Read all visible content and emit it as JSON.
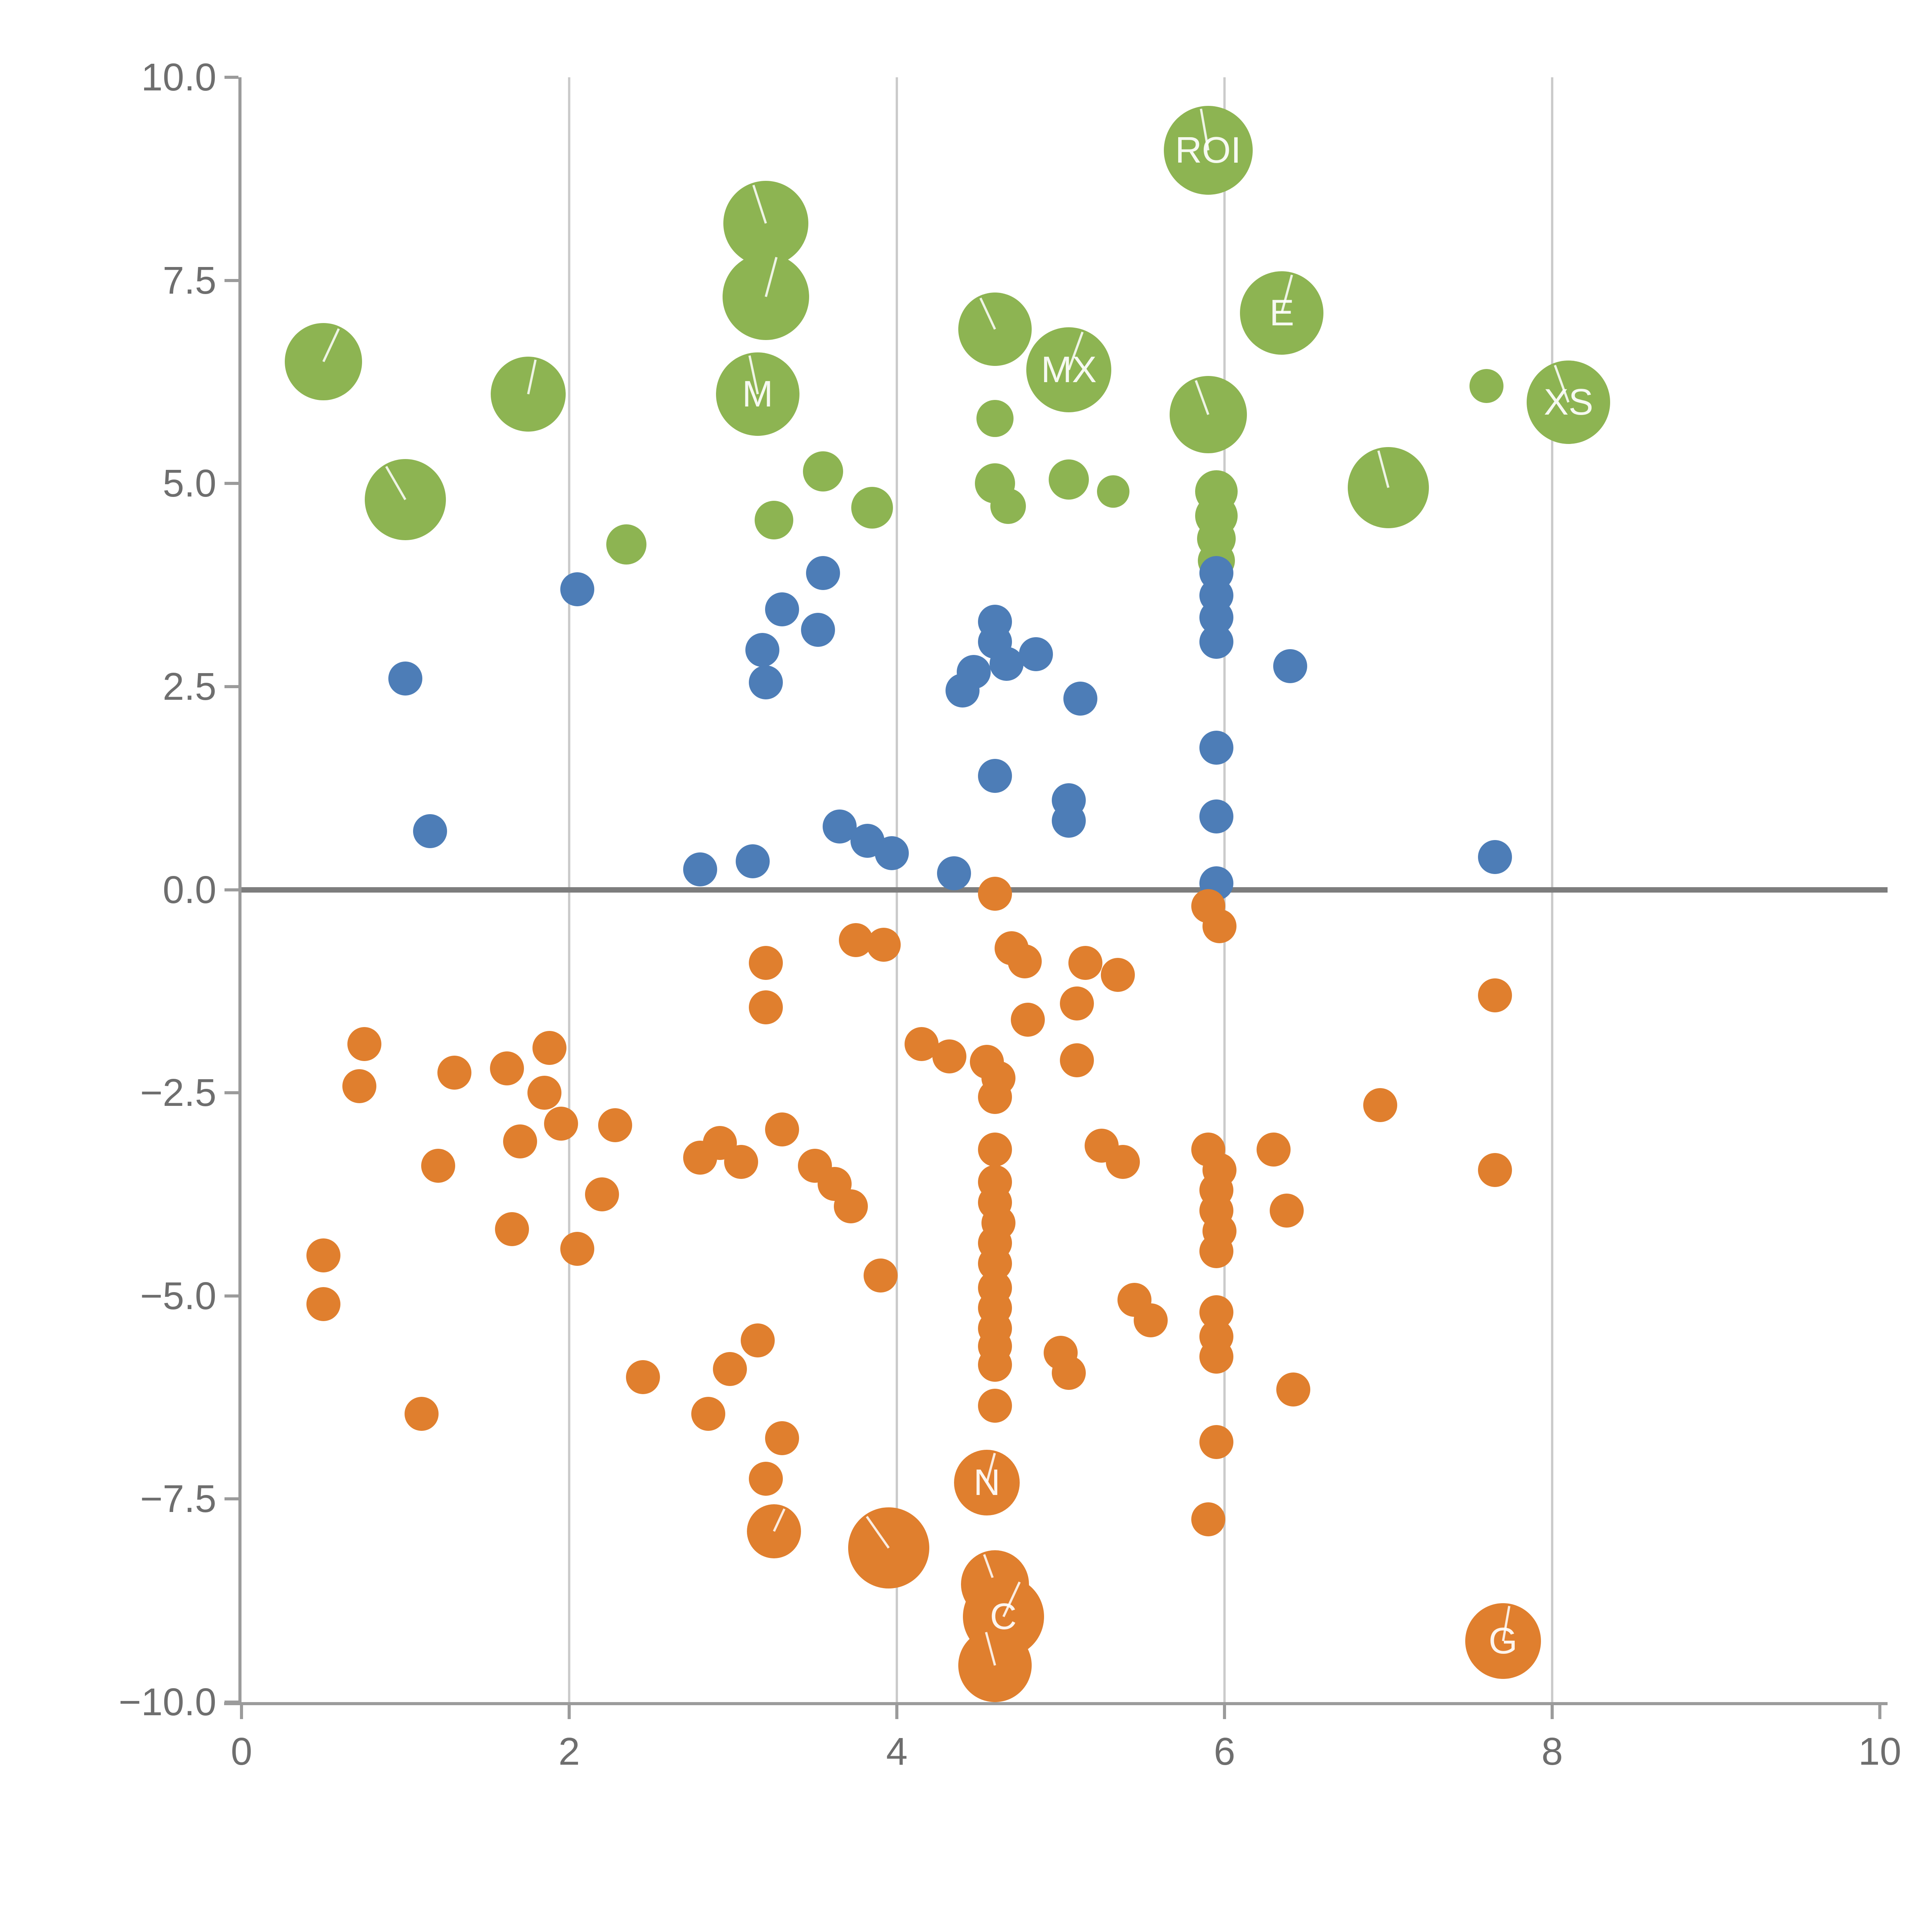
{
  "chart_data": {
    "type": "scatter",
    "title": "",
    "xlabel": "",
    "ylabel": "",
    "xlim": [
      0,
      10
    ],
    "ylim": [
      -10,
      10
    ],
    "legend": "none",
    "grid": "vertical-gridlines-only",
    "grid_x_values": [
      2,
      4,
      6,
      8
    ],
    "zero_line_y": 0,
    "x_ticks": [
      {
        "v": 0,
        "label": "0"
      },
      {
        "v": 2,
        "label": "2"
      },
      {
        "v": 4,
        "label": "4"
      },
      {
        "v": 6,
        "label": "6"
      },
      {
        "v": 8,
        "label": "8"
      },
      {
        "v": 10,
        "label": "10"
      }
    ],
    "y_ticks": [
      {
        "v": 10,
        "label": "10.0"
      },
      {
        "v": 7.5,
        "label": "7.5"
      },
      {
        "v": 5,
        "label": "5.0"
      },
      {
        "v": 2.5,
        "label": "2.5"
      },
      {
        "v": 0,
        "label": "0.0"
      },
      {
        "v": -2.5,
        "label": "−2.5"
      },
      {
        "v": -5,
        "label": "−5.0"
      },
      {
        "v": -7.5,
        "label": "−7.5"
      },
      {
        "v": -10,
        "label": "−10.0"
      }
    ],
    "colors": {
      "green": "#8db452",
      "blue": "#4d7db7",
      "orange": "#e07f2e",
      "grid": "#cbcbcb",
      "zero_line": "#7d7d7d",
      "axis": "#9b9b9b",
      "tick_label": "#6e6e6e",
      "bubble_label": "#ffffff"
    },
    "series": [
      {
        "name": "green",
        "color": "#8db452",
        "default_radius": 48,
        "points": [
          {
            "x": 0.5,
            "y": 6.5,
            "r": 100,
            "a": 25
          },
          {
            "x": 1.0,
            "y": 4.8,
            "r": 105,
            "a": -30
          },
          {
            "x": 1.75,
            "y": 6.1,
            "r": 97,
            "a": 12
          },
          {
            "x": 2.35,
            "y": 4.25,
            "r": 52
          },
          {
            "x": 3.2,
            "y": 8.2,
            "r": 110,
            "a": -18
          },
          {
            "x": 3.2,
            "y": 7.3,
            "r": 112,
            "a": 15
          },
          {
            "x": 3.15,
            "y": 6.1,
            "r": 108,
            "a": -12,
            "label": "M"
          },
          {
            "x": 3.25,
            "y": 4.55,
            "r": 50
          },
          {
            "x": 3.55,
            "y": 5.15,
            "r": 52
          },
          {
            "x": 3.85,
            "y": 4.7,
            "r": 54
          },
          {
            "x": 4.6,
            "y": 6.9,
            "r": 95,
            "a": -25
          },
          {
            "x": 4.6,
            "y": 5.8,
            "r": 48
          },
          {
            "x": 4.6,
            "y": 5.0,
            "r": 52
          },
          {
            "x": 4.68,
            "y": 4.72,
            "r": 46
          },
          {
            "x": 5.05,
            "y": 6.4,
            "r": 110,
            "a": 20,
            "label": "MX"
          },
          {
            "x": 5.05,
            "y": 5.05,
            "r": 52
          },
          {
            "x": 5.32,
            "y": 4.9,
            "r": 42
          },
          {
            "x": 5.9,
            "y": 9.1,
            "r": 115,
            "a": -10,
            "label": "ROI"
          },
          {
            "x": 5.9,
            "y": 5.85,
            "r": 100,
            "a": -20
          },
          {
            "x": 5.95,
            "y": 4.9,
            "r": 55
          },
          {
            "x": 5.95,
            "y": 4.6,
            "r": 55
          },
          {
            "x": 5.95,
            "y": 4.32,
            "r": 50
          },
          {
            "x": 5.95,
            "y": 4.05,
            "r": 48
          },
          {
            "x": 6.35,
            "y": 7.1,
            "r": 108,
            "a": 15,
            "label": "E"
          },
          {
            "x": 7.0,
            "y": 4.95,
            "r": 105,
            "a": -15
          },
          {
            "x": 7.6,
            "y": 6.2,
            "r": 44
          },
          {
            "x": 8.1,
            "y": 6.0,
            "r": 108,
            "a": -20,
            "label": "XS"
          }
        ]
      },
      {
        "name": "blue",
        "color": "#4d7db7",
        "default_radius": 44,
        "points": [
          {
            "x": 1.0,
            "y": 2.6
          },
          {
            "x": 1.15,
            "y": 0.72
          },
          {
            "x": 2.05,
            "y": 3.7
          },
          {
            "x": 2.8,
            "y": 0.25
          },
          {
            "x": 3.12,
            "y": 0.35
          },
          {
            "x": 3.2,
            "y": 2.55
          },
          {
            "x": 3.18,
            "y": 2.95
          },
          {
            "x": 3.3,
            "y": 3.45
          },
          {
            "x": 3.55,
            "y": 3.9
          },
          {
            "x": 3.52,
            "y": 3.2
          },
          {
            "x": 3.65,
            "y": 0.78
          },
          {
            "x": 3.82,
            "y": 0.6
          },
          {
            "x": 3.97,
            "y": 0.45
          },
          {
            "x": 4.35,
            "y": 0.2
          },
          {
            "x": 4.4,
            "y": 2.45
          },
          {
            "x": 4.47,
            "y": 2.68
          },
          {
            "x": 4.6,
            "y": 3.3
          },
          {
            "x": 4.6,
            "y": 3.05
          },
          {
            "x": 4.67,
            "y": 2.78
          },
          {
            "x": 4.6,
            "y": 1.4
          },
          {
            "x": 4.85,
            "y": 2.9
          },
          {
            "x": 5.05,
            "y": 1.1
          },
          {
            "x": 5.05,
            "y": 0.85
          },
          {
            "x": 5.12,
            "y": 2.35
          },
          {
            "x": 5.95,
            "y": 3.9
          },
          {
            "x": 5.95,
            "y": 3.62
          },
          {
            "x": 5.95,
            "y": 3.35
          },
          {
            "x": 5.95,
            "y": 3.05
          },
          {
            "x": 5.95,
            "y": 1.75
          },
          {
            "x": 5.95,
            "y": 0.9
          },
          {
            "x": 5.95,
            "y": 0.08
          },
          {
            "x": 6.4,
            "y": 2.75
          },
          {
            "x": 7.65,
            "y": 0.4
          }
        ]
      },
      {
        "name": "orange",
        "color": "#e07f2e",
        "default_radius": 44,
        "points": [
          {
            "x": 0.5,
            "y": -4.5
          },
          {
            "x": 0.5,
            "y": -5.1
          },
          {
            "x": 0.75,
            "y": -1.9
          },
          {
            "x": 0.72,
            "y": -2.42
          },
          {
            "x": 1.1,
            "y": -6.45
          },
          {
            "x": 1.2,
            "y": -3.4
          },
          {
            "x": 1.3,
            "y": -2.25
          },
          {
            "x": 1.62,
            "y": -2.2
          },
          {
            "x": 1.88,
            "y": -1.95
          },
          {
            "x": 1.85,
            "y": -2.5
          },
          {
            "x": 1.7,
            "y": -3.1
          },
          {
            "x": 1.95,
            "y": -2.88
          },
          {
            "x": 1.65,
            "y": -4.18
          },
          {
            "x": 2.05,
            "y": -4.42
          },
          {
            "x": 2.2,
            "y": -3.75
          },
          {
            "x": 2.28,
            "y": -2.9
          },
          {
            "x": 2.45,
            "y": -6.0
          },
          {
            "x": 2.8,
            "y": -3.3
          },
          {
            "x": 2.92,
            "y": -3.12
          },
          {
            "x": 2.85,
            "y": -6.45
          },
          {
            "x": 2.98,
            "y": -5.9
          },
          {
            "x": 3.15,
            "y": -5.55
          },
          {
            "x": 3.2,
            "y": -0.9
          },
          {
            "x": 3.2,
            "y": -1.45
          },
          {
            "x": 3.05,
            "y": -3.35
          },
          {
            "x": 3.3,
            "y": -2.95
          },
          {
            "x": 3.5,
            "y": -3.4
          },
          {
            "x": 3.62,
            "y": -3.62
          },
          {
            "x": 3.72,
            "y": -3.9
          },
          {
            "x": 3.3,
            "y": -6.75
          },
          {
            "x": 3.2,
            "y": -7.25
          },
          {
            "x": 3.25,
            "y": -7.9,
            "r": 70,
            "a": 25
          },
          {
            "x": 3.75,
            "y": -0.62
          },
          {
            "x": 3.92,
            "y": -0.68
          },
          {
            "x": 3.9,
            "y": -4.75
          },
          {
            "x": 3.95,
            "y": -8.1,
            "r": 105,
            "a": -35
          },
          {
            "x": 4.15,
            "y": -1.9
          },
          {
            "x": 4.32,
            "y": -2.05
          },
          {
            "x": 4.55,
            "y": -2.12
          },
          {
            "x": 4.62,
            "y": -2.32
          },
          {
            "x": 4.6,
            "y": -2.55
          },
          {
            "x": 4.6,
            "y": -0.05
          },
          {
            "x": 4.7,
            "y": -0.72
          },
          {
            "x": 4.78,
            "y": -0.88
          },
          {
            "x": 4.8,
            "y": -1.6
          },
          {
            "x": 4.6,
            "y": -3.2
          },
          {
            "x": 4.6,
            "y": -3.6
          },
          {
            "x": 4.6,
            "y": -3.85
          },
          {
            "x": 4.62,
            "y": -4.1
          },
          {
            "x": 4.6,
            "y": -4.35
          },
          {
            "x": 4.6,
            "y": -4.6
          },
          {
            "x": 4.6,
            "y": -4.9
          },
          {
            "x": 4.6,
            "y": -5.15
          },
          {
            "x": 4.6,
            "y": -5.4
          },
          {
            "x": 4.6,
            "y": -5.62
          },
          {
            "x": 4.6,
            "y": -5.85
          },
          {
            "x": 4.6,
            "y": -6.35
          },
          {
            "x": 4.55,
            "y": -7.3,
            "r": 85,
            "a": 15,
            "label": "N"
          },
          {
            "x": 4.6,
            "y": -8.55,
            "r": 88,
            "a": -20
          },
          {
            "x": 4.65,
            "y": -8.95,
            "r": 105,
            "a": 25,
            "label": "C"
          },
          {
            "x": 4.6,
            "y": -9.55,
            "r": 95,
            "a": -15
          },
          {
            "x": 5.1,
            "y": -1.4
          },
          {
            "x": 5.15,
            "y": -0.9
          },
          {
            "x": 5.35,
            "y": -1.05
          },
          {
            "x": 5.1,
            "y": -2.1
          },
          {
            "x": 5.25,
            "y": -3.15
          },
          {
            "x": 5.38,
            "y": -3.35
          },
          {
            "x": 5.0,
            "y": -5.7
          },
          {
            "x": 5.05,
            "y": -5.95
          },
          {
            "x": 5.45,
            "y": -5.05
          },
          {
            "x": 5.55,
            "y": -5.3
          },
          {
            "x": 5.9,
            "y": -0.2
          },
          {
            "x": 5.97,
            "y": -0.45
          },
          {
            "x": 5.9,
            "y": -3.2
          },
          {
            "x": 5.97,
            "y": -3.45
          },
          {
            "x": 5.95,
            "y": -3.7
          },
          {
            "x": 5.95,
            "y": -3.95
          },
          {
            "x": 5.97,
            "y": -4.2
          },
          {
            "x": 5.95,
            "y": -4.45
          },
          {
            "x": 5.95,
            "y": -5.2
          },
          {
            "x": 5.95,
            "y": -5.5
          },
          {
            "x": 5.95,
            "y": -5.75
          },
          {
            "x": 5.95,
            "y": -6.8
          },
          {
            "x": 5.9,
            "y": -7.75
          },
          {
            "x": 6.3,
            "y": -3.2
          },
          {
            "x": 6.38,
            "y": -3.95
          },
          {
            "x": 6.42,
            "y": -6.15
          },
          {
            "x": 6.95,
            "y": -2.65
          },
          {
            "x": 7.65,
            "y": -1.3
          },
          {
            "x": 7.65,
            "y": -3.45
          },
          {
            "x": 7.7,
            "y": -9.25,
            "r": 98,
            "a": 10,
            "label": "G"
          }
        ]
      }
    ]
  }
}
